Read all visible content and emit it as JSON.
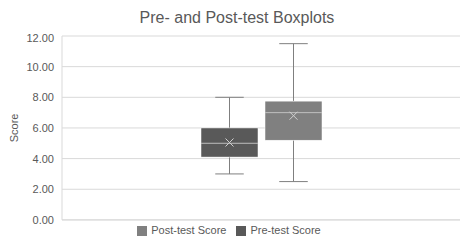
{
  "chart_data": {
    "type": "box",
    "title": "Pre- and Post-test Boxplots",
    "y_label": "Score",
    "ylim": [
      0,
      12
    ],
    "yticks": [
      {
        "value": 0,
        "label": "0.00"
      },
      {
        "value": 2,
        "label": "2.00"
      },
      {
        "value": 4,
        "label": "4.00"
      },
      {
        "value": 6,
        "label": "6.00"
      },
      {
        "value": 8,
        "label": "8.00"
      },
      {
        "value": 10,
        "label": "10.00"
      },
      {
        "value": 12,
        "label": "12.00"
      }
    ],
    "grid": true,
    "legend": "bottom",
    "tick_labels": "y",
    "series": [
      {
        "name": "Pre-test Score",
        "color": "#595959",
        "min": 3,
        "q1": 4.1,
        "median": 5,
        "q3": 6,
        "max": 8,
        "mean": 5.05
      },
      {
        "name": "Post-test Score",
        "color": "#808080",
        "min": 2.5,
        "q1": 5.2,
        "median": 7,
        "q3": 7.75,
        "max": 11.5,
        "mean": 6.8
      }
    ]
  }
}
